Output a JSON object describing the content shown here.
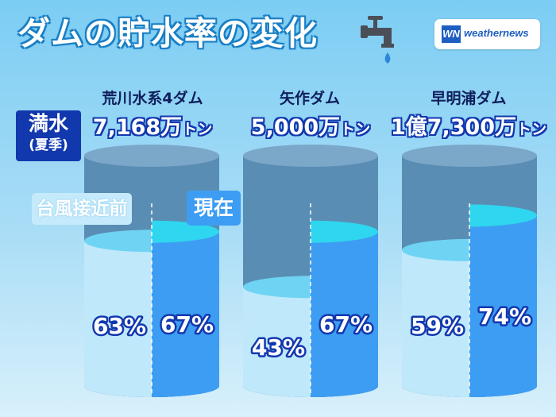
{
  "title": "ダムの貯水率の変化",
  "logo": {
    "mark": "WN",
    "text": "weathernews"
  },
  "full_label": {
    "line1": "満水",
    "line2": "(夏季)"
  },
  "legend": {
    "before": "台風接近前",
    "now": "現在"
  },
  "colors": {
    "empty": "#5a8db4",
    "empty_top": "#7ba7c9",
    "before": "#bfe8fb",
    "before_surface": "#6fd4f3",
    "now": "#3d9df2",
    "now_surface": "#2fd6ef"
  },
  "chart_data": {
    "type": "bar",
    "categories": [
      "荒川水系4ダム",
      "矢作ダム",
      "早明浦ダム"
    ],
    "capacity_labels": [
      {
        "num": "7,168万",
        "unit": "トン"
      },
      {
        "num": "5,000万",
        "unit": "トン"
      },
      {
        "num": "1億7,300万",
        "unit": "トン"
      }
    ],
    "series": [
      {
        "name": "台風接近前",
        "values": [
          63,
          43,
          59
        ]
      },
      {
        "name": "現在",
        "values": [
          67,
          67,
          74
        ]
      }
    ],
    "value_labels": {
      "before": [
        "63%",
        "43%",
        "59%"
      ],
      "now": [
        "67%",
        "67%",
        "74%"
      ]
    },
    "unit": "%",
    "ylim": [
      0,
      100
    ]
  }
}
